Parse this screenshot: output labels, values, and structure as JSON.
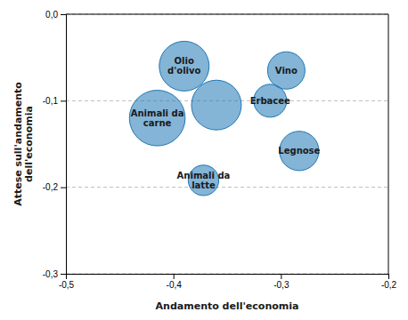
{
  "chart_data": {
    "type": "bubble",
    "xlabel": "Andamento dell'economia",
    "ylabel": "Attese sull'andamento\ndell'economia",
    "x": [
      -0.39,
      -0.36,
      -0.295,
      -0.415,
      -0.31,
      -0.283,
      -0.372
    ],
    "values": [
      -0.06,
      -0.105,
      -0.065,
      -0.12,
      -0.1,
      -0.158,
      -0.192
    ],
    "sizes": [
      1600,
      1600,
      900,
      2000,
      700,
      1000,
      600
    ],
    "labels": [
      "Olio\nd'olivo",
      null,
      "Vino",
      "Animali da\ncarne",
      "Erbacee",
      "Legnose",
      "Animali da\nlatte"
    ],
    "xlim": [
      -0.5,
      -0.2
    ],
    "ylim": [
      -0.3,
      0.0
    ],
    "xticks": [
      {
        "value": -0.5,
        "label": "-0,5"
      },
      {
        "value": -0.4,
        "label": "-0,4"
      },
      {
        "value": -0.3,
        "label": "-0,3"
      },
      {
        "value": -0.2,
        "label": "-0,2"
      }
    ],
    "yticks": [
      {
        "value": 0.0,
        "label": "0,0"
      },
      {
        "value": -0.1,
        "label": "-0,1"
      },
      {
        "value": -0.2,
        "label": "-0,2"
      },
      {
        "value": -0.3,
        "label": "-0,3"
      }
    ],
    "grid": "y"
  }
}
